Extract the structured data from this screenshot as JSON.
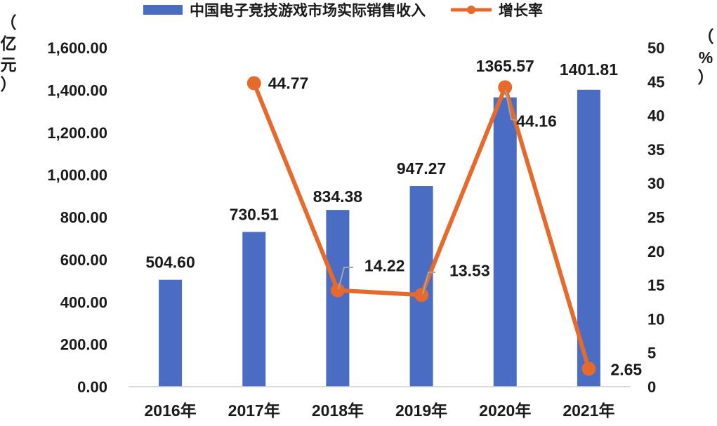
{
  "chart_data": {
    "type": "bar+line",
    "categories": [
      "2016年",
      "2017年",
      "2018年",
      "2019年",
      "2020年",
      "2021年"
    ],
    "series": [
      {
        "name": "中国电子竞技游戏市场实际销售收入",
        "type": "bar",
        "axis": "left",
        "values": [
          504.6,
          730.51,
          834.38,
          947.27,
          1365.57,
          1401.81
        ],
        "labels": [
          "504.60",
          "730.51",
          "834.38",
          "947.27",
          "1365.57",
          "1401.81"
        ]
      },
      {
        "name": "增长率",
        "type": "line",
        "axis": "right",
        "values": [
          null,
          44.77,
          14.22,
          13.53,
          44.16,
          2.65
        ],
        "labels": [
          "",
          "44.77",
          "14.22",
          "13.53",
          "44.16",
          "2.65"
        ]
      }
    ],
    "y_left": {
      "unit_chars": [
        "（",
        "亿",
        "元",
        "）"
      ],
      "ylim": [
        0,
        1600
      ],
      "ticks": [
        "0.00",
        "200.00",
        "400.00",
        "600.00",
        "800.00",
        "1,000.00",
        "1,200.00",
        "1,400.00",
        "1,600.00"
      ],
      "tick_values": [
        0,
        200,
        400,
        600,
        800,
        1000,
        1200,
        1400,
        1600
      ]
    },
    "y_right": {
      "unit_chars": [
        "（",
        "%",
        "）"
      ],
      "ylim": [
        0,
        50
      ],
      "ticks": [
        "0",
        "5",
        "10",
        "15",
        "20",
        "25",
        "30",
        "35",
        "40",
        "45",
        "50"
      ],
      "tick_values": [
        0,
        5,
        10,
        15,
        20,
        25,
        30,
        35,
        40,
        45,
        50
      ]
    },
    "grid": false,
    "legend_position": "top",
    "colors": {
      "bar": "#4a6cc3",
      "line": "#e56a2c",
      "text": "#1a1a1a",
      "axis": "#d0d0d0",
      "leader": "#a5a5a5"
    }
  }
}
